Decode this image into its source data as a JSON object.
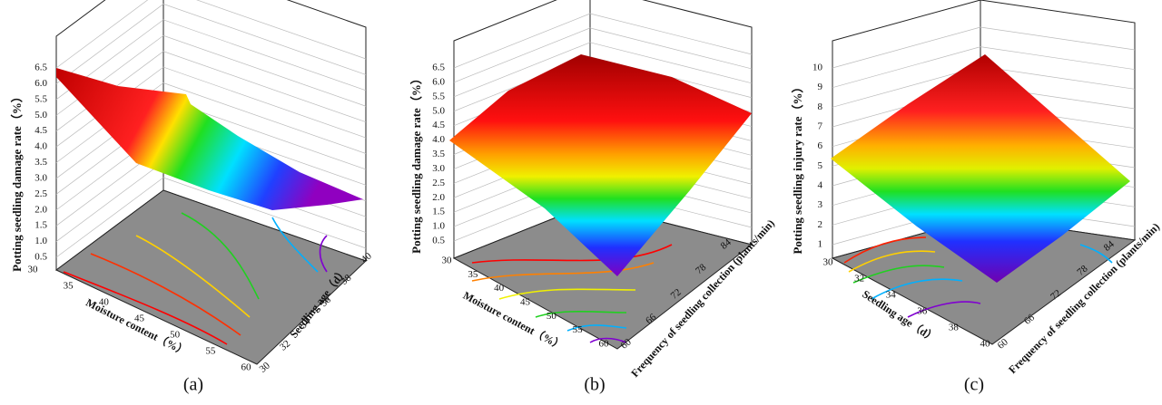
{
  "panels": [
    {
      "caption": "(a)",
      "z_title": "Potting seedling damage rate（%）",
      "x_title": "Moisture content（%）",
      "y_title": "Seedling age（d）",
      "z_ticks": [
        "0.5",
        "1.0",
        "1.5",
        "2.0",
        "2.5",
        "3.0",
        "3.5",
        "4.0",
        "4.5",
        "5.0",
        "5.5",
        "6.0",
        "6.5"
      ],
      "x_ticks": [
        "30",
        "35",
        "40",
        "45",
        "50",
        "55",
        "60"
      ],
      "y_ticks": [
        "30",
        "32",
        "34",
        "36",
        "38",
        "40"
      ]
    },
    {
      "caption": "(b)",
      "z_title": "Potting seedling damage rate（%）",
      "x_title": "Moisture content（%）",
      "y_title": "Frequency of seedling collection (plants/min)",
      "z_ticks": [
        "0.5",
        "1.0",
        "1.5",
        "2.0",
        "2.5",
        "3.0",
        "3.5",
        "4.0",
        "4.5",
        "5.0",
        "5.5",
        "6.0",
        "6.5"
      ],
      "x_ticks": [
        "30",
        "35",
        "40",
        "45",
        "50",
        "55",
        "60"
      ],
      "y_ticks": [
        "60",
        "66",
        "72",
        "78",
        "84"
      ]
    },
    {
      "caption": "(c)",
      "z_title": "Potting seedling injury rate（%）",
      "x_title": "Seedling age（d）",
      "y_title": "Frequency of seedling collection (plants/min)",
      "z_ticks": [
        "1",
        "2",
        "3",
        "4",
        "5",
        "6",
        "7",
        "8",
        "9",
        "10"
      ],
      "x_ticks": [
        "30",
        "32",
        "34",
        "36",
        "38",
        "40"
      ],
      "y_ticks": [
        "60",
        "66",
        "72",
        "78",
        "84"
      ]
    }
  ]
}
